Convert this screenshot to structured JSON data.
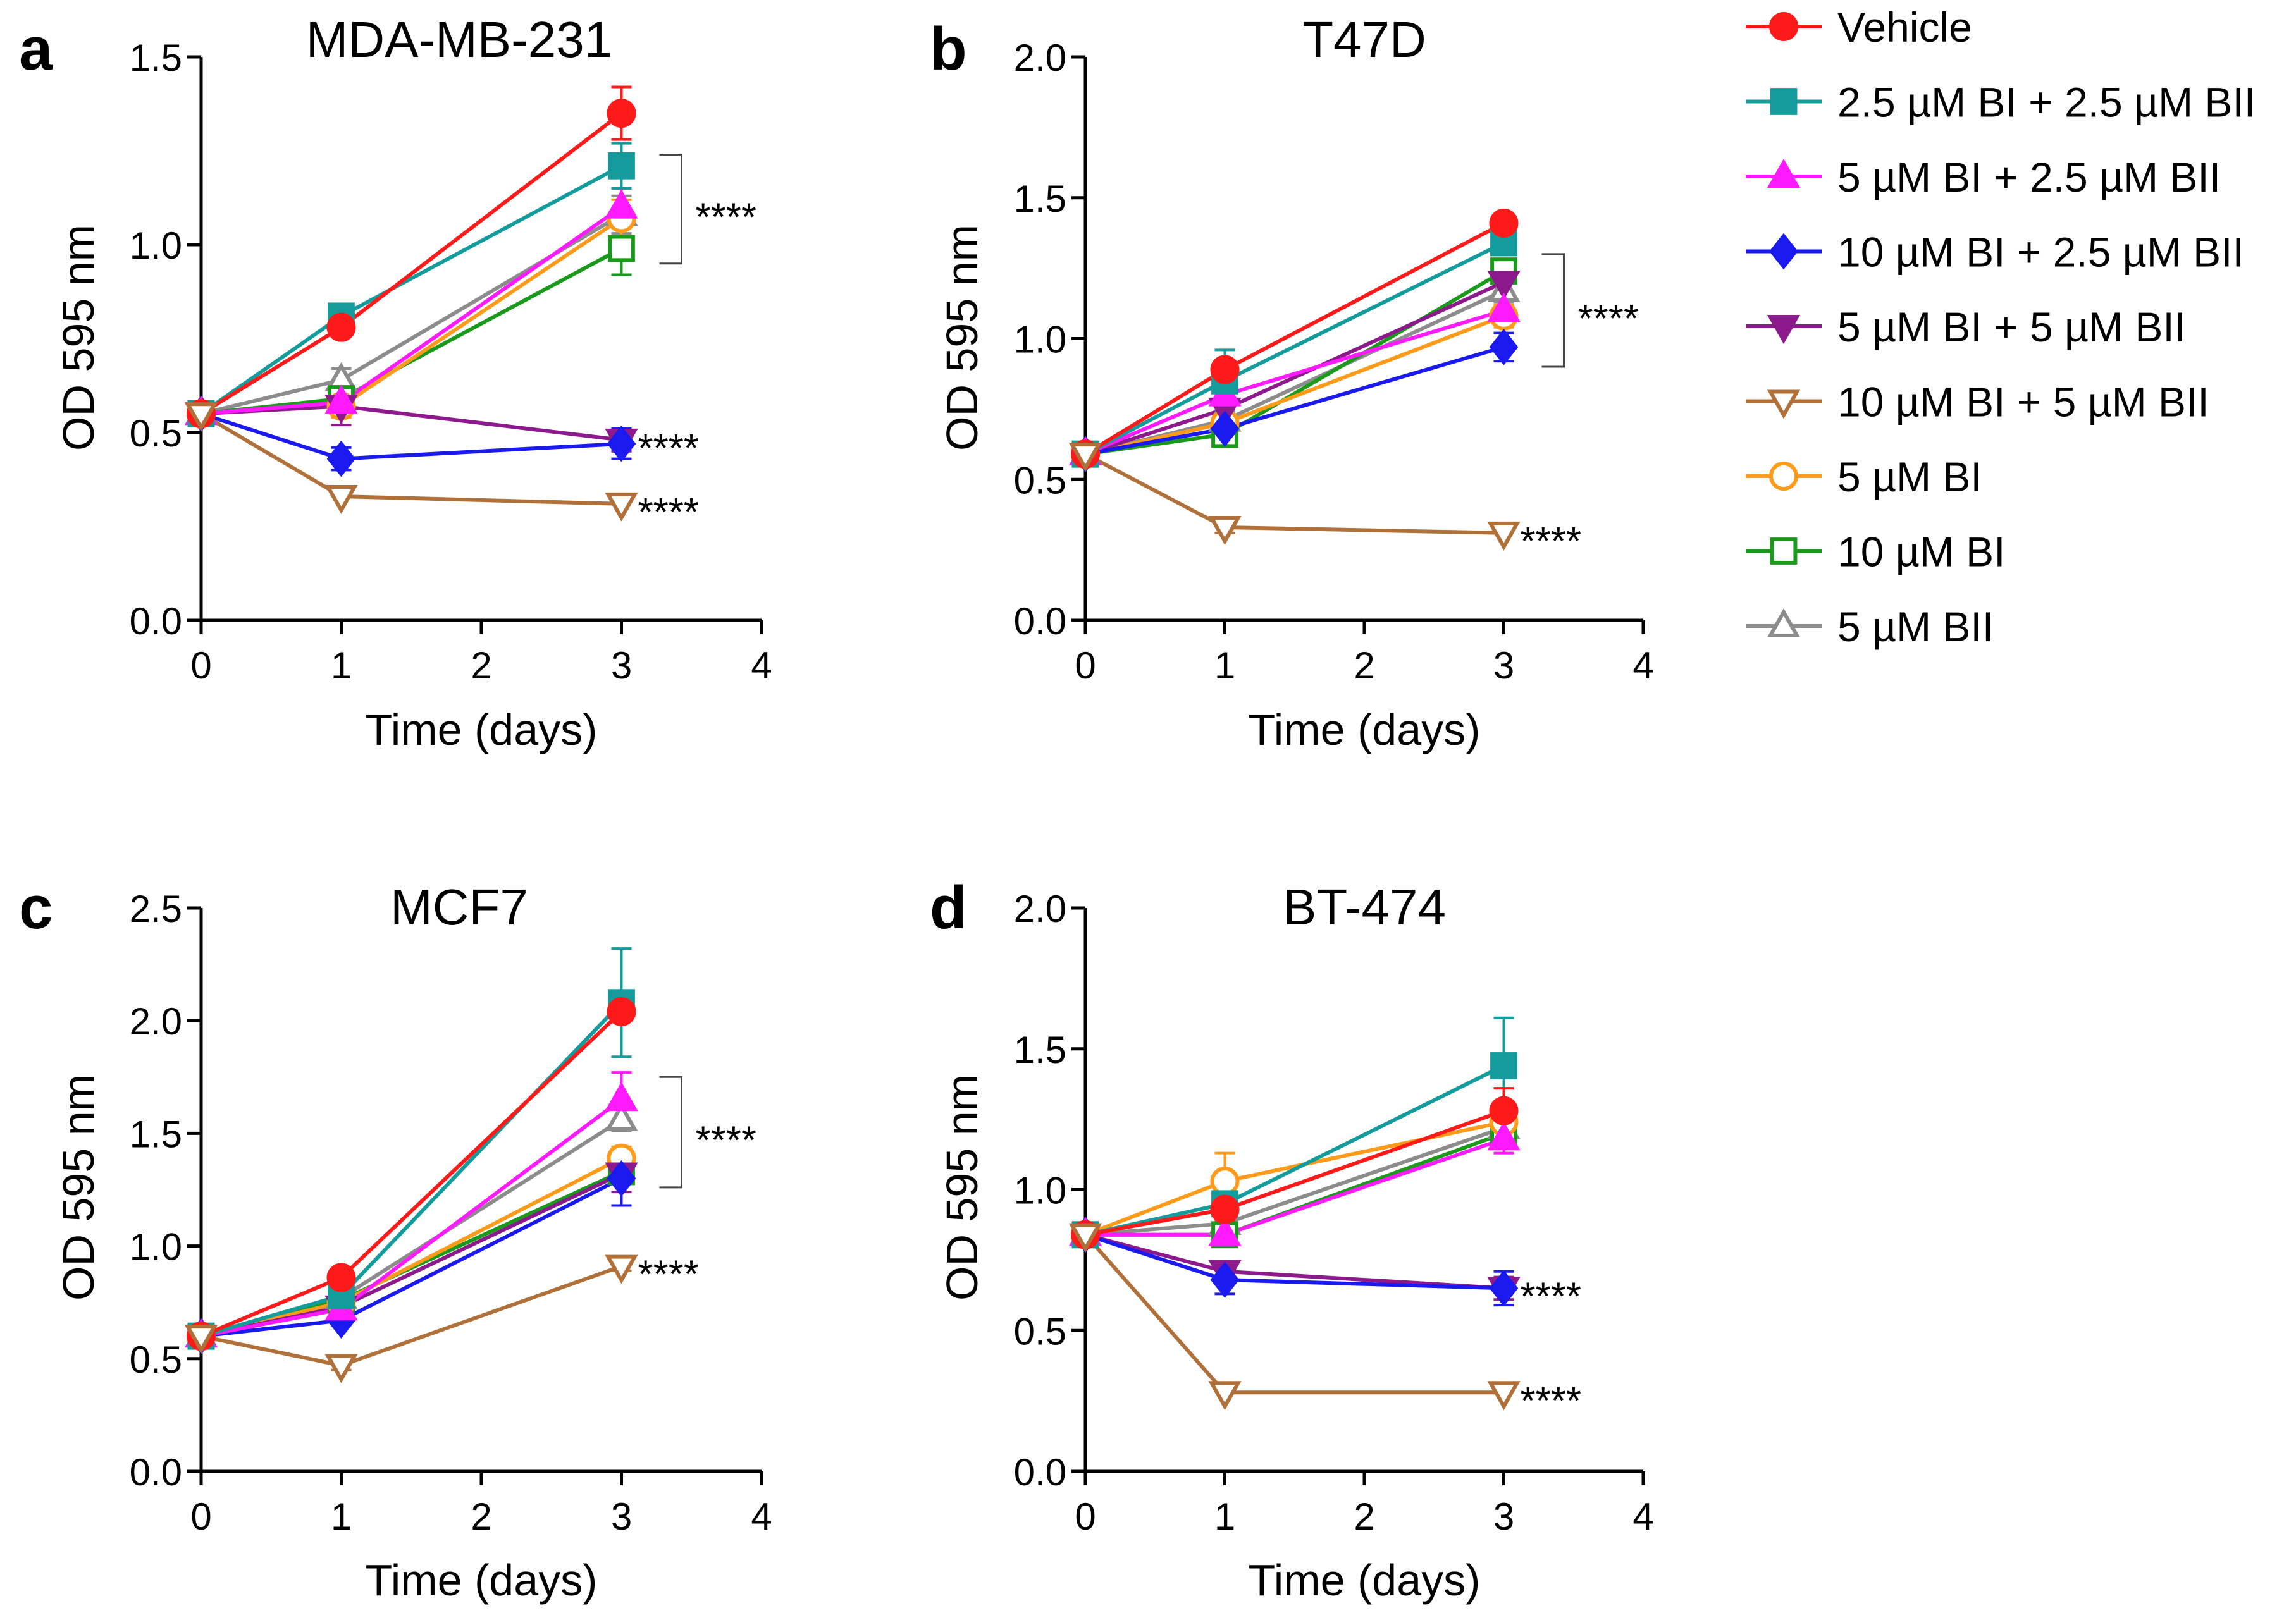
{
  "chart_data": [
    {
      "type": "line",
      "panel_label": "a",
      "title": "MDA-MB-231",
      "xlabel": "Time (days)",
      "ylabel": "OD 595 nm",
      "xlim": [
        0,
        4
      ],
      "ylim": [
        0,
        1.5
      ],
      "xticks": [
        "0",
        "1",
        "2",
        "3",
        "4"
      ],
      "yticks": [
        "0.0",
        "0.5",
        "1.0",
        "1.5"
      ],
      "x": [
        0,
        1,
        3
      ],
      "series": [
        {
          "name": "Vehicle",
          "values": [
            0.55,
            0.78,
            1.35
          ],
          "err": [
            0.01,
            0.02,
            0.07
          ]
        },
        {
          "name": "2.5 µM BI + 2.5 µM BII",
          "values": [
            0.55,
            0.81,
            1.21
          ],
          "err": [
            0.01,
            0.02,
            0.06
          ]
        },
        {
          "name": "5 µM BI + 2.5 µM BII",
          "values": [
            0.55,
            0.58,
            1.1
          ],
          "err": [
            0.01,
            0.03,
            0.05
          ]
        },
        {
          "name": "10 µM BI + 2.5 µM BII",
          "values": [
            0.55,
            0.43,
            0.47
          ],
          "err": [
            0.01,
            0.03,
            0.04
          ]
        },
        {
          "name": "5 µM BI + 5 µM BII",
          "values": [
            0.55,
            0.57,
            0.48
          ],
          "err": [
            0.01,
            0.05,
            0.03
          ]
        },
        {
          "name": "10 µM BI + 5 µM BII",
          "values": [
            0.55,
            0.33,
            0.31
          ],
          "err": [
            0.01,
            0.01,
            0.01
          ]
        },
        {
          "name": "5 µM BI",
          "values": [
            0.55,
            0.57,
            1.07
          ],
          "err": [
            0.01,
            0.03,
            0.05
          ]
        },
        {
          "name": "10 µM BI",
          "values": [
            0.55,
            0.59,
            0.99
          ],
          "err": [
            0.01,
            0.03,
            0.07
          ]
        },
        {
          "name": "5 µM BII",
          "values": [
            0.55,
            0.64,
            1.08
          ],
          "err": [
            0.01,
            0.03,
            0.05
          ]
        }
      ],
      "annotations": [
        {
          "text": "****",
          "bracket": [
            1.24,
            0.95
          ]
        },
        {
          "text": "****",
          "at": 0.48
        },
        {
          "text": "****",
          "at": 0.31
        }
      ]
    },
    {
      "type": "line",
      "panel_label": "b",
      "title": "T47D",
      "xlabel": "Time (days)",
      "ylabel": "OD 595 nm",
      "xlim": [
        0,
        4
      ],
      "ylim": [
        0,
        2.0
      ],
      "xticks": [
        "0",
        "1",
        "2",
        "3",
        "4"
      ],
      "yticks": [
        "0.0",
        "0.5",
        "1.0",
        "1.5",
        "2.0"
      ],
      "x": [
        0,
        1,
        3
      ],
      "series": [
        {
          "name": "Vehicle",
          "values": [
            0.59,
            0.89,
            1.41
          ],
          "err": [
            0.01,
            0.03,
            0.02
          ]
        },
        {
          "name": "2.5 µM BI + 2.5 µM BII",
          "values": [
            0.59,
            0.85,
            1.34
          ],
          "err": [
            0.01,
            0.11,
            0.03
          ]
        },
        {
          "name": "5 µM BI + 2.5 µM BII",
          "values": [
            0.59,
            0.8,
            1.1
          ],
          "err": [
            0.01,
            0.05,
            0.05
          ]
        },
        {
          "name": "10 µM BI + 2.5 µM BII",
          "values": [
            0.59,
            0.68,
            0.97
          ],
          "err": [
            0.01,
            0.04,
            0.05
          ]
        },
        {
          "name": "5 µM BI + 5 µM BII",
          "values": [
            0.59,
            0.75,
            1.2
          ],
          "err": [
            0.01,
            0.04,
            0.04
          ]
        },
        {
          "name": "10 µM BI + 5 µM BII",
          "values": [
            0.59,
            0.33,
            0.31
          ],
          "err": [
            0.01,
            0.02,
            0.01
          ]
        },
        {
          "name": "5 µM BI",
          "values": [
            0.59,
            0.7,
            1.08
          ],
          "err": [
            0.01,
            0.03,
            0.04
          ]
        },
        {
          "name": "10 µM BI",
          "values": [
            0.59,
            0.66,
            1.24
          ],
          "err": [
            0.01,
            0.03,
            0.04
          ]
        },
        {
          "name": "5 µM BII",
          "values": [
            0.59,
            0.71,
            1.17
          ],
          "err": [
            0.01,
            0.03,
            0.04
          ]
        }
      ],
      "annotations": [
        {
          "text": "****",
          "bracket": [
            1.3,
            0.9
          ]
        },
        {
          "text": "****",
          "at": 0.31
        }
      ]
    },
    {
      "type": "line",
      "panel_label": "c",
      "title": "MCF7",
      "xlabel": "Time (days)",
      "ylabel": "OD 595 nm",
      "xlim": [
        0,
        4
      ],
      "ylim": [
        0,
        2.5
      ],
      "xticks": [
        "0",
        "1",
        "2",
        "3",
        "4"
      ],
      "yticks": [
        "0.0",
        "0.5",
        "1.0",
        "1.5",
        "2.0",
        "2.5"
      ],
      "x": [
        0,
        1,
        3
      ],
      "series": [
        {
          "name": "Vehicle",
          "values": [
            0.6,
            0.86,
            2.04
          ],
          "err": [
            0.01,
            0.02,
            0.04
          ]
        },
        {
          "name": "2.5 µM BI + 2.5 µM BII",
          "values": [
            0.6,
            0.78,
            2.08
          ],
          "err": [
            0.01,
            0.03,
            0.24
          ]
        },
        {
          "name": "5 µM BI + 2.5 µM BII",
          "values": [
            0.6,
            0.72,
            1.65
          ],
          "err": [
            0.01,
            0.03,
            0.12
          ]
        },
        {
          "name": "10 µM BI + 2.5 µM BII",
          "values": [
            0.6,
            0.67,
            1.3
          ],
          "err": [
            0.01,
            0.02,
            0.12
          ]
        },
        {
          "name": "5 µM BI + 5 µM BII",
          "values": [
            0.6,
            0.73,
            1.32
          ],
          "err": [
            0.01,
            0.03,
            0.08
          ]
        },
        {
          "name": "10 µM BI + 5 µM BII",
          "values": [
            0.6,
            0.47,
            0.91
          ],
          "err": [
            0.01,
            0.02,
            0.02
          ]
        },
        {
          "name": "5 µM BI",
          "values": [
            0.6,
            0.75,
            1.39
          ],
          "err": [
            0.01,
            0.03,
            0.05
          ]
        },
        {
          "name": "10 µM BI",
          "values": [
            0.6,
            0.76,
            1.33
          ],
          "err": [
            0.01,
            0.03,
            0.05
          ]
        },
        {
          "name": "5 µM BII",
          "values": [
            0.6,
            0.77,
            1.56
          ],
          "err": [
            0.01,
            0.03,
            0.05
          ]
        }
      ],
      "annotations": [
        {
          "text": "****",
          "bracket": [
            1.75,
            1.26
          ]
        },
        {
          "text": "****",
          "at": 0.91
        }
      ]
    },
    {
      "type": "line",
      "panel_label": "d",
      "title": "BT-474",
      "xlabel": "Time (days)",
      "ylabel": "OD 595 nm",
      "xlim": [
        0,
        4
      ],
      "ylim": [
        0,
        2.0
      ],
      "xticks": [
        "0",
        "1",
        "2",
        "3",
        "4"
      ],
      "yticks": [
        "0.0",
        "0.5",
        "1.0",
        "1.5",
        "2.0"
      ],
      "x": [
        0,
        1,
        3
      ],
      "series": [
        {
          "name": "Vehicle",
          "values": [
            0.84,
            0.93,
            1.28
          ],
          "err": [
            0.02,
            0.04,
            0.08
          ]
        },
        {
          "name": "2.5 µM BI + 2.5 µM BII",
          "values": [
            0.84,
            0.95,
            1.44
          ],
          "err": [
            0.02,
            0.04,
            0.17
          ]
        },
        {
          "name": "5 µM BI + 2.5 µM BII",
          "values": [
            0.84,
            0.84,
            1.18
          ],
          "err": [
            0.02,
            0.04,
            0.05
          ]
        },
        {
          "name": "10 µM BI + 2.5 µM BII",
          "values": [
            0.84,
            0.68,
            0.65
          ],
          "err": [
            0.02,
            0.05,
            0.06
          ]
        },
        {
          "name": "5 µM BI + 5 µM BII",
          "values": [
            0.84,
            0.71,
            0.65
          ],
          "err": [
            0.02,
            0.03,
            0.04
          ]
        },
        {
          "name": "10 µM BI + 5 µM BII",
          "values": [
            0.84,
            0.28,
            0.28
          ],
          "err": [
            0.02,
            0.01,
            0.01
          ]
        },
        {
          "name": "5 µM BI",
          "values": [
            0.84,
            1.03,
            1.24
          ],
          "err": [
            0.02,
            0.1,
            0.05
          ]
        },
        {
          "name": "10 µM BI",
          "values": [
            0.84,
            0.84,
            1.2
          ],
          "err": [
            0.02,
            0.03,
            0.07
          ]
        },
        {
          "name": "5 µM BII",
          "values": [
            0.84,
            0.88,
            1.22
          ],
          "err": [
            0.02,
            0.03,
            0.05
          ]
        }
      ],
      "annotations": [
        {
          "text": "****",
          "at": 0.65
        },
        {
          "text": "****",
          "at": 0.28
        }
      ]
    }
  ],
  "legend": {
    "items": [
      {
        "label": "Vehicle",
        "color": "#ff1a1a",
        "marker": "circle",
        "filled": true
      },
      {
        "label": "2.5 µM BI + 2.5 µM BII",
        "color": "#149c9c",
        "marker": "square",
        "filled": true
      },
      {
        "label": "5 µM BI + 2.5 µM BII",
        "color": "#ff1aff",
        "marker": "triangle-up",
        "filled": true
      },
      {
        "label": "10 µM BI + 2.5 µM BII",
        "color": "#1a1aee",
        "marker": "diamond",
        "filled": true
      },
      {
        "label": "5 µM BI + 5 µM BII",
        "color": "#8c1a8c",
        "marker": "triangle-down",
        "filled": true
      },
      {
        "label": "10 µM BI + 5 µM BII",
        "color": "#b0703a",
        "marker": "triangle-down",
        "filled": false
      },
      {
        "label": "5 µM BI",
        "color": "#ff9a1a",
        "marker": "circle",
        "filled": false
      },
      {
        "label": "10 µM BI",
        "color": "#1a9a1a",
        "marker": "square",
        "filled": false
      },
      {
        "label": "5 µM BII",
        "color": "#8c8c8c",
        "marker": "triangle-up",
        "filled": false
      }
    ]
  }
}
